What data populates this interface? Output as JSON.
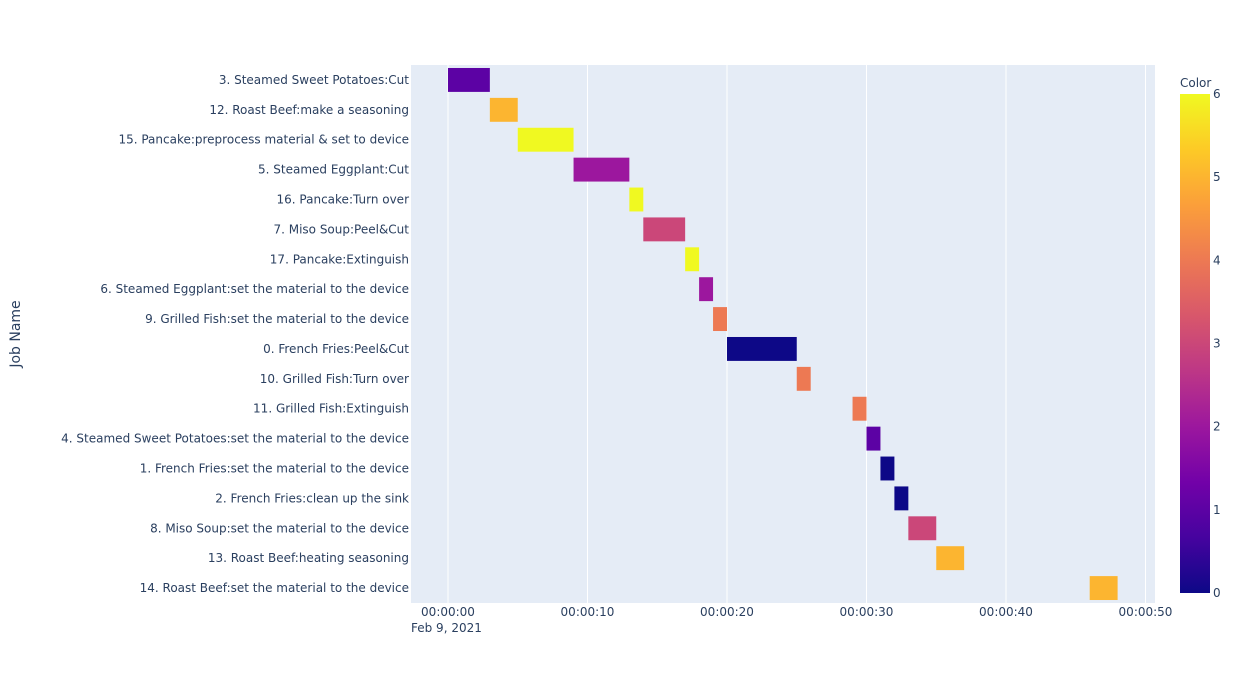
{
  "chart_data": {
    "type": "gantt",
    "ylabel": "Job Name",
    "x_ticks": [
      "00:00:00",
      "00:00:10",
      "00:00:20",
      "00:00:30",
      "00:00:40",
      "00:00:50"
    ],
    "x_date_label": "Feb 9, 2021",
    "xlim": [
      0,
      50
    ],
    "colorbar": {
      "title": "Color",
      "range": [
        0,
        6
      ],
      "ticks": [
        "0",
        "1",
        "2",
        "3",
        "4",
        "5",
        "6"
      ],
      "colorscale": [
        "#0d0887",
        "#46039f",
        "#7201a8",
        "#9c179e",
        "#bd3786",
        "#d8576b",
        "#ed7953",
        "#fb9f3a",
        "#fdca26",
        "#f0f921"
      ]
    },
    "grid": true,
    "tasks": [
      {
        "name": "3. Steamed Sweet Potatoes:Cut",
        "start": 0,
        "end": 3,
        "color": 1
      },
      {
        "name": "12. Roast Beef:make a seasoning",
        "start": 3,
        "end": 5,
        "color": 5
      },
      {
        "name": "15. Pancake:preprocess material & set to device",
        "start": 5,
        "end": 9,
        "color": 6
      },
      {
        "name": "5. Steamed Eggplant:Cut",
        "start": 9,
        "end": 13,
        "color": 2
      },
      {
        "name": "16. Pancake:Turn over",
        "start": 13,
        "end": 14,
        "color": 6
      },
      {
        "name": "7. Miso Soup:Peel&Cut",
        "start": 14,
        "end": 17,
        "color": 3
      },
      {
        "name": "17. Pancake:Extinguish",
        "start": 17,
        "end": 18,
        "color": 6
      },
      {
        "name": "6. Steamed Eggplant:set the material to the device",
        "start": 18,
        "end": 19,
        "color": 2
      },
      {
        "name": "9. Grilled Fish:set the material to the device",
        "start": 19,
        "end": 20,
        "color": 4
      },
      {
        "name": "0. French Fries:Peel&Cut",
        "start": 20,
        "end": 25,
        "color": 0
      },
      {
        "name": "10. Grilled Fish:Turn over",
        "start": 25,
        "end": 26,
        "color": 4
      },
      {
        "name": "11. Grilled Fish:Extinguish",
        "start": 29,
        "end": 30,
        "color": 4
      },
      {
        "name": "4. Steamed Sweet Potatoes:set the material to the device",
        "start": 30,
        "end": 31,
        "color": 1
      },
      {
        "name": "1. French Fries:set the material to the device",
        "start": 31,
        "end": 32,
        "color": 0
      },
      {
        "name": "2. French Fries:clean up the sink",
        "start": 32,
        "end": 33,
        "color": 0
      },
      {
        "name": "8. Miso Soup:set the material to the device",
        "start": 33,
        "end": 35,
        "color": 3
      },
      {
        "name": "13. Roast Beef:heating seasoning",
        "start": 35,
        "end": 37,
        "color": 5
      },
      {
        "name": "14. Roast Beef:set the material to the device",
        "start": 46,
        "end": 48,
        "color": 5
      }
    ]
  }
}
